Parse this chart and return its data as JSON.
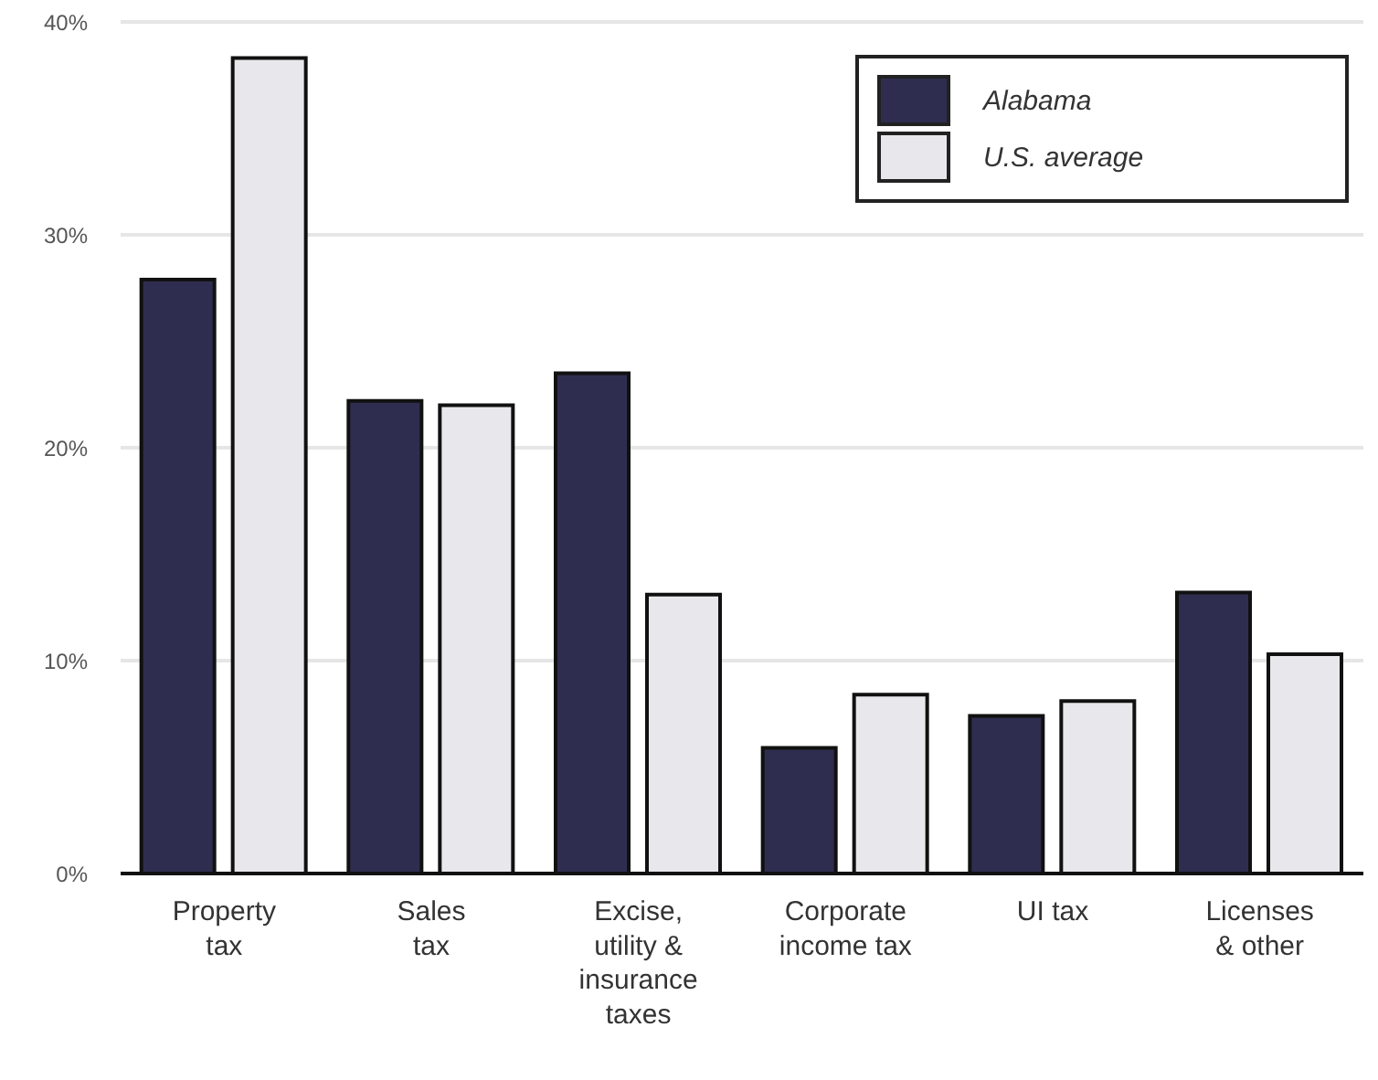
{
  "chart_data": {
    "type": "bar",
    "categories": [
      "Property\ntax",
      "Sales\ntax",
      "Excise,\nutility &\ninsurance\ntaxes",
      "Corporate\nincome tax",
      "UI tax",
      "Licenses\n& other"
    ],
    "series": [
      {
        "name": "Alabama",
        "color": "#2f2d4f",
        "values": [
          27.9,
          22.2,
          23.5,
          5.9,
          7.4,
          13.2
        ]
      },
      {
        "name": "U.S. average",
        "color": "#e8e8ec",
        "values": [
          38.3,
          22.0,
          13.1,
          8.4,
          8.1,
          10.3
        ]
      }
    ],
    "ylim": [
      0,
      40
    ],
    "yticks": [
      {
        "value": 0,
        "label": "0%"
      },
      {
        "value": 10,
        "label": "10%"
      },
      {
        "value": 20,
        "label": "20%"
      },
      {
        "value": 30,
        "label": "30%"
      },
      {
        "value": 40,
        "label": "40%"
      }
    ],
    "grid": "y",
    "legend": "top right"
  }
}
